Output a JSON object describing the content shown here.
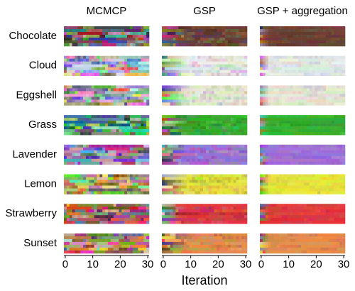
{
  "chart_data": {
    "type": "chain-grid",
    "columns": [
      "MCMCP",
      "GSP",
      "GSP + aggregation"
    ],
    "rows": [
      "Chocolate",
      "Cloud",
      "Eggshell",
      "Grass",
      "Lavender",
      "Lemon",
      "Strawberry",
      "Sunset"
    ],
    "colors": [
      "#6b3a2a",
      "#eef2f0",
      "#eeeedc",
      "#2bb324",
      "#a46ee0",
      "#eeee34",
      "#e8303a",
      "#ee8a44"
    ],
    "xlabel": "Iteration",
    "xlim": [
      -0.5,
      30.5
    ],
    "xticks": [
      0,
      10,
      20,
      30
    ]
  }
}
